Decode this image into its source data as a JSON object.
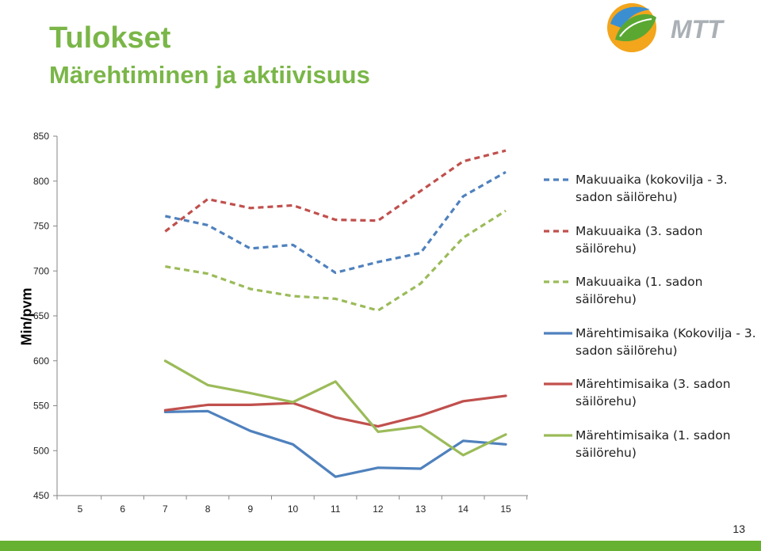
{
  "slide": {
    "title": "Tulokset",
    "subtitle": "Märehtiminen ja aktiivisuus",
    "page_number": "13",
    "logo_text": "MTT",
    "accent_color": "#7ab648"
  },
  "chart_data": {
    "type": "line",
    "ylabel": "Min/pvm",
    "xlabel": "",
    "ylim": [
      450,
      850
    ],
    "yticks": [
      450,
      500,
      550,
      600,
      650,
      700,
      750,
      800,
      850
    ],
    "categories": [
      "5",
      "6",
      "7",
      "8",
      "9",
      "10",
      "11",
      "12",
      "13",
      "14",
      "15"
    ],
    "legend_position": "right",
    "grid": false,
    "series": [
      {
        "name": "Makuuaika (kokovilja - 3. sadon säilörehu)",
        "color": "#4f81bd",
        "dashed": true,
        "values": [
          null,
          null,
          761,
          751,
          725,
          729,
          698,
          710,
          720,
          783,
          810
        ]
      },
      {
        "name": "Makuuaika (3. sadon säilörehu)",
        "color": "#c0504d",
        "dashed": true,
        "values": [
          null,
          null,
          744,
          780,
          770,
          773,
          757,
          756,
          789,
          822,
          834
        ]
      },
      {
        "name": "Makuuaika (1. sadon säilörehu)",
        "color": "#9bbb59",
        "dashed": true,
        "values": [
          null,
          null,
          705,
          697,
          680,
          672,
          669,
          656,
          686,
          737,
          767
        ]
      },
      {
        "name": "Märehtimisaika (Kokovilja - 3. sadon säilörehu)",
        "color": "#4f81bd",
        "dashed": false,
        "values": [
          null,
          null,
          543,
          544,
          522,
          507,
          471,
          481,
          480,
          511,
          507
        ]
      },
      {
        "name": "Märehtimisaika (3. sadon säilörehu)",
        "color": "#c0504d",
        "dashed": false,
        "values": [
          null,
          null,
          545,
          551,
          551,
          553,
          537,
          527,
          539,
          555,
          561
        ]
      },
      {
        "name": "Märehtimisaika (1. sadon säilörehu)",
        "color": "#9bbb59",
        "dashed": false,
        "values": [
          null,
          null,
          600,
          573,
          564,
          554,
          577,
          521,
          527,
          495,
          518
        ]
      }
    ]
  }
}
